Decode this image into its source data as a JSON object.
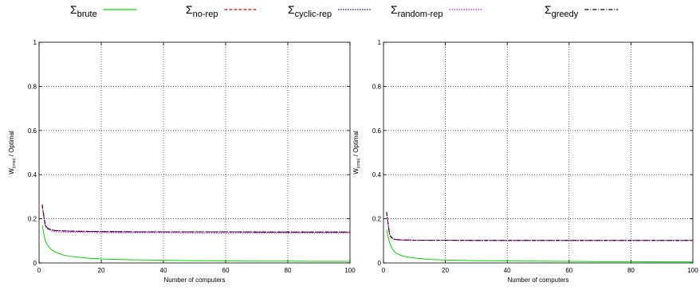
{
  "legend": {
    "placement": "top",
    "entries": [
      {
        "symbol": "Σ",
        "sub": "brute",
        "color": "#00dd00",
        "dash": "solid"
      },
      {
        "symbol": "Σ",
        "sub": "no-rep",
        "color": "#ee0000",
        "dash": "dashed"
      },
      {
        "symbol": "Σ",
        "sub": "cyclic-rep",
        "color": "#0000aa",
        "dash": "dotted"
      },
      {
        "symbol": "Σ",
        "sub": "random-rep",
        "color": "#ee00ee",
        "dash": "dotted"
      },
      {
        "symbol": "Σ",
        "sub": "greedy",
        "color": "#000000",
        "dash": "dashdot"
      }
    ]
  },
  "chart_data": [
    {
      "type": "line",
      "xlabel": "Number of computers",
      "ylabel_main": "W",
      "ylabel_sub": "(cmp)",
      "ylabel_rest": " / Optimal",
      "xlim": [
        0,
        100
      ],
      "ylim": [
        0,
        1
      ],
      "xticks": [
        "0",
        "20",
        "40",
        "60",
        "80",
        "100"
      ],
      "yticks": [
        "0",
        "0.2",
        "0.4",
        "0.6",
        "0.8",
        "1"
      ],
      "grid": true,
      "x": [
        1,
        2,
        3,
        4,
        5,
        6,
        8,
        10,
        15,
        20,
        30,
        40,
        50,
        60,
        70,
        80,
        90,
        100
      ],
      "series": [
        {
          "name": "Σbrute",
          "values": [
            0.17,
            0.1,
            0.075,
            0.06,
            0.05,
            0.045,
            0.035,
            0.03,
            0.022,
            0.018,
            0.014,
            0.012,
            0.01,
            0.009,
            0.008,
            0.008,
            0.007,
            0.007
          ]
        },
        {
          "name": "Σno-rep",
          "values": [
            0.26,
            0.17,
            0.155,
            0.15,
            0.147,
            0.146,
            0.145,
            0.144,
            0.143,
            0.142,
            0.141,
            0.141,
            0.141,
            0.141,
            0.14,
            0.14,
            0.14,
            0.14
          ]
        },
        {
          "name": "Σcyclic-rep",
          "values": [
            0.26,
            0.17,
            0.155,
            0.15,
            0.147,
            0.146,
            0.145,
            0.144,
            0.143,
            0.142,
            0.141,
            0.141,
            0.141,
            0.141,
            0.14,
            0.14,
            0.14,
            0.14
          ]
        },
        {
          "name": "Σrandom-rep",
          "values": [
            0.26,
            0.165,
            0.15,
            0.145,
            0.142,
            0.141,
            0.14,
            0.139,
            0.138,
            0.137,
            0.137,
            0.137,
            0.136,
            0.136,
            0.136,
            0.136,
            0.136,
            0.136
          ]
        },
        {
          "name": "Σgreedy",
          "values": [
            0.265,
            0.17,
            0.155,
            0.15,
            0.147,
            0.146,
            0.145,
            0.144,
            0.143,
            0.142,
            0.141,
            0.141,
            0.141,
            0.141,
            0.14,
            0.14,
            0.14,
            0.14
          ]
        }
      ]
    },
    {
      "type": "line",
      "xlabel": "Number of computers",
      "ylabel_main": "W",
      "ylabel_sub": "(cmp)",
      "ylabel_rest": " / Optimal",
      "xlim": [
        0,
        100
      ],
      "ylim": [
        0,
        1
      ],
      "xticks": [
        "0",
        "20",
        "40",
        "60",
        "80",
        "100"
      ],
      "yticks": [
        "0",
        "0.2",
        "0.4",
        "0.6",
        "0.8",
        "1"
      ],
      "grid": true,
      "x": [
        1,
        2,
        3,
        4,
        5,
        6,
        8,
        10,
        15,
        20,
        30,
        40,
        50,
        60,
        70,
        80,
        90,
        100
      ],
      "series": [
        {
          "name": "Σbrute",
          "values": [
            0.15,
            0.09,
            0.06,
            0.045,
            0.038,
            0.032,
            0.026,
            0.022,
            0.016,
            0.013,
            0.01,
            0.009,
            0.008,
            0.007,
            0.006,
            0.006,
            0.005,
            0.005
          ]
        },
        {
          "name": "Σno-rep",
          "values": [
            0.23,
            0.125,
            0.11,
            0.106,
            0.105,
            0.104,
            0.104,
            0.103,
            0.103,
            0.103,
            0.102,
            0.102,
            0.102,
            0.102,
            0.102,
            0.102,
            0.102,
            0.102
          ]
        },
        {
          "name": "Σcyclic-rep",
          "values": [
            0.23,
            0.125,
            0.11,
            0.106,
            0.105,
            0.104,
            0.104,
            0.103,
            0.103,
            0.103,
            0.102,
            0.102,
            0.102,
            0.102,
            0.102,
            0.102,
            0.102,
            0.102
          ]
        },
        {
          "name": "Σrandom-rep",
          "values": [
            0.23,
            0.124,
            0.109,
            0.105,
            0.104,
            0.103,
            0.103,
            0.102,
            0.102,
            0.102,
            0.101,
            0.101,
            0.101,
            0.101,
            0.101,
            0.101,
            0.101,
            0.101
          ]
        },
        {
          "name": "Σgreedy",
          "values": [
            0.23,
            0.125,
            0.11,
            0.106,
            0.105,
            0.104,
            0.104,
            0.103,
            0.103,
            0.103,
            0.102,
            0.102,
            0.102,
            0.102,
            0.102,
            0.102,
            0.102,
            0.102
          ]
        }
      ]
    }
  ]
}
